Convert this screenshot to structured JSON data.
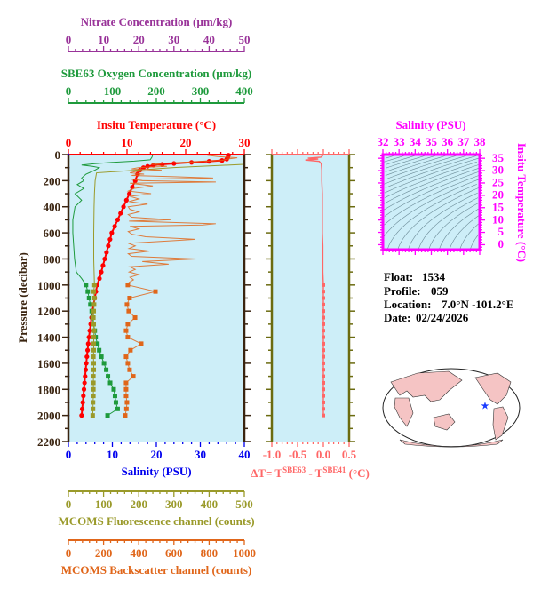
{
  "chart_data": {
    "type": "line",
    "ylabel": "Pressure (decibar)",
    "ylim": [
      2200,
      0
    ],
    "yticks": [
      "0",
      "200",
      "400",
      "600",
      "800",
      "1000",
      "1200",
      "1400",
      "1600",
      "1800",
      "2000",
      "2200"
    ],
    "grid": false,
    "axes": {
      "nitrate": {
        "label": "Nitrate Concentration (µm/kg)",
        "range": [
          0,
          50
        ],
        "ticks": [
          "0",
          "10",
          "20",
          "30",
          "40",
          "50"
        ],
        "color": "#993399",
        "position": "top"
      },
      "oxygen": {
        "label": "SBE63 Oxygen Concentration (µm/kg)",
        "range": [
          0,
          400
        ],
        "ticks": [
          "0",
          "100",
          "200",
          "300",
          "400"
        ],
        "color": "#1e9a3c",
        "position": "top"
      },
      "temperature": {
        "label": "Insitu Temperature (°C)",
        "range": [
          0,
          30
        ],
        "ticks": [
          "0",
          "10",
          "20",
          "30"
        ],
        "color": "#ff0000",
        "position": "top"
      },
      "salinity": {
        "label": "Salinity (PSU)",
        "range": [
          0,
          40
        ],
        "ticks": [
          "0",
          "10",
          "20",
          "30",
          "40"
        ],
        "color": "#0000ee",
        "position": "bottom"
      },
      "fluorescence": {
        "label": "MCOMS Fluorescence channel (counts)",
        "range": [
          0,
          500
        ],
        "ticks": [
          "0",
          "100",
          "200",
          "300",
          "400",
          "500"
        ],
        "color": "#9a9a2a",
        "position": "bottom"
      },
      "backscatter": {
        "label": "MCOMS Backscatter channel (counts)",
        "range": [
          0,
          1000
        ],
        "ticks": [
          "0",
          "200",
          "400",
          "600",
          "800",
          "1000"
        ],
        "color": "#e0661a",
        "position": "bottom"
      }
    },
    "series": [
      {
        "axis": "temperature",
        "points": [
          [
            5,
            27.3
          ],
          [
            20,
            27.2
          ],
          [
            35,
            27.0
          ],
          [
            45,
            26.2
          ],
          [
            52,
            24
          ],
          [
            60,
            21
          ],
          [
            68,
            18
          ],
          [
            75,
            16
          ],
          [
            82,
            14.5
          ],
          [
            90,
            13.5
          ],
          [
            100,
            12.8
          ],
          [
            120,
            12.2
          ],
          [
            150,
            11.8
          ],
          [
            200,
            11.4
          ],
          [
            250,
            10.9
          ],
          [
            300,
            10.4
          ],
          [
            350,
            9.9
          ],
          [
            400,
            9.4
          ],
          [
            450,
            8.9
          ],
          [
            500,
            8.4
          ],
          [
            550,
            7.9
          ],
          [
            600,
            7.4
          ],
          [
            650,
            7.1
          ],
          [
            700,
            6.8
          ],
          [
            750,
            6.5
          ],
          [
            800,
            6.2
          ],
          [
            850,
            5.9
          ],
          [
            900,
            5.6
          ],
          [
            950,
            5.3
          ],
          [
            1000,
            4.9
          ],
          [
            1050,
            4.7
          ],
          [
            1100,
            4.5
          ],
          [
            1150,
            4.3
          ],
          [
            1200,
            4.1
          ],
          [
            1250,
            3.95
          ],
          [
            1300,
            3.8
          ],
          [
            1350,
            3.65
          ],
          [
            1400,
            3.5
          ],
          [
            1450,
            3.38
          ],
          [
            1500,
            3.27
          ],
          [
            1550,
            3.15
          ],
          [
            1600,
            3.05
          ],
          [
            1650,
            2.95
          ],
          [
            1700,
            2.85
          ],
          [
            1750,
            2.75
          ],
          [
            1800,
            2.65
          ],
          [
            1850,
            2.55
          ],
          [
            1900,
            2.45
          ],
          [
            1950,
            2.35
          ],
          [
            2000,
            2.25
          ]
        ]
      },
      {
        "axis": "oxygen",
        "points": [
          [
            0,
            192
          ],
          [
            20,
            190
          ],
          [
            40,
            186
          ],
          [
            50,
            150
          ],
          [
            60,
            100
          ],
          [
            70,
            60
          ],
          [
            80,
            30
          ],
          [
            90,
            55
          ],
          [
            100,
            70
          ],
          [
            120,
            60
          ],
          [
            150,
            40
          ],
          [
            180,
            30
          ],
          [
            200,
            35
          ],
          [
            230,
            20
          ],
          [
            260,
            35
          ],
          [
            300,
            15
          ],
          [
            350,
            30
          ],
          [
            400,
            15
          ],
          [
            500,
            10
          ],
          [
            600,
            10
          ],
          [
            700,
            12
          ],
          [
            800,
            14
          ],
          [
            900,
            18
          ],
          [
            950,
            30
          ],
          [
            1000,
            40
          ],
          [
            1050,
            44
          ],
          [
            1100,
            47
          ],
          [
            1150,
            50
          ],
          [
            1200,
            53
          ],
          [
            1250,
            55
          ],
          [
            1300,
            57
          ],
          [
            1350,
            60
          ],
          [
            1400,
            62
          ],
          [
            1450,
            66
          ],
          [
            1500,
            70
          ],
          [
            1550,
            75
          ],
          [
            1600,
            81
          ],
          [
            1650,
            86
          ],
          [
            1700,
            90
          ],
          [
            1750,
            95
          ],
          [
            1800,
            103
          ],
          [
            1850,
            106
          ],
          [
            1900,
            108
          ],
          [
            1950,
            112
          ],
          [
            2000,
            89
          ]
        ]
      },
      {
        "axis": "fluorescence",
        "points": [
          [
            0,
            520
          ],
          [
            60,
            510
          ],
          [
            75,
            498
          ],
          [
            100,
            300
          ],
          [
            140,
            80
          ],
          [
            200,
            76
          ],
          [
            300,
            74
          ],
          [
            400,
            73
          ],
          [
            600,
            72
          ],
          [
            800,
            72
          ],
          [
            1000,
            74
          ],
          [
            1050,
            72
          ],
          [
            1100,
            74
          ],
          [
            1150,
            73
          ],
          [
            1200,
            72
          ],
          [
            1250,
            71
          ],
          [
            1300,
            72
          ],
          [
            1350,
            73
          ],
          [
            1400,
            72
          ],
          [
            1450,
            72
          ],
          [
            1500,
            72
          ],
          [
            1550,
            71
          ],
          [
            1600,
            72
          ],
          [
            1650,
            72
          ],
          [
            1700,
            71
          ],
          [
            1750,
            71
          ],
          [
            1800,
            71
          ],
          [
            1850,
            71
          ],
          [
            1900,
            70
          ],
          [
            1950,
            70
          ],
          [
            2000,
            69
          ]
        ]
      },
      {
        "axis": "backscatter",
        "points": [
          [
            5,
            790
          ],
          [
            15,
            850
          ],
          [
            25,
            960
          ],
          [
            35,
            900
          ],
          [
            45,
            875
          ],
          [
            55,
            720
          ],
          [
            65,
            560
          ],
          [
            75,
            470
          ],
          [
            90,
            560
          ],
          [
            100,
            400
          ],
          [
            110,
            360
          ],
          [
            120,
            530
          ],
          [
            130,
            380
          ],
          [
            140,
            350
          ],
          [
            150,
            430
          ],
          [
            160,
            360
          ],
          [
            170,
            620
          ],
          [
            180,
            823
          ],
          [
            190,
            360
          ],
          [
            200,
            420
          ],
          [
            210,
            838
          ],
          [
            220,
            350
          ],
          [
            240,
            480
          ],
          [
            260,
            370
          ],
          [
            280,
            340
          ],
          [
            300,
            470
          ],
          [
            320,
            350
          ],
          [
            340,
            400
          ],
          [
            360,
            345
          ],
          [
            380,
            450
          ],
          [
            400,
            340
          ],
          [
            420,
            350
          ],
          [
            440,
            400
          ],
          [
            460,
            340
          ],
          [
            480,
            360
          ],
          [
            500,
            580
          ],
          [
            510,
            345
          ],
          [
            530,
            838
          ],
          [
            540,
            763
          ],
          [
            550,
            350
          ],
          [
            570,
            400
          ],
          [
            590,
            340
          ],
          [
            610,
            360
          ],
          [
            630,
            440
          ],
          [
            650,
            722
          ],
          [
            660,
            600
          ],
          [
            680,
            340
          ],
          [
            700,
            380
          ],
          [
            720,
            345
          ],
          [
            740,
            460
          ],
          [
            760,
            340
          ],
          [
            780,
            360
          ],
          [
            800,
            727
          ],
          [
            820,
            420
          ],
          [
            840,
            570
          ],
          [
            860,
            350
          ],
          [
            880,
            380
          ],
          [
            900,
            345
          ],
          [
            920,
            400
          ],
          [
            940,
            350
          ],
          [
            960,
            370
          ],
          [
            980,
            345
          ],
          [
            1000,
            338
          ],
          [
            1050,
            495
          ],
          [
            1100,
            348
          ],
          [
            1150,
            333
          ],
          [
            1200,
            343
          ],
          [
            1250,
            379
          ],
          [
            1300,
            338
          ],
          [
            1350,
            328
          ],
          [
            1400,
            338
          ],
          [
            1450,
            414
          ],
          [
            1500,
            353
          ],
          [
            1550,
            328
          ],
          [
            1600,
            338
          ],
          [
            1650,
            348
          ],
          [
            1700,
            369
          ],
          [
            1750,
            328
          ],
          [
            1800,
            328
          ],
          [
            1850,
            328
          ],
          [
            1900,
            333
          ],
          [
            1950,
            330
          ],
          [
            2000,
            323
          ]
        ]
      },
      {
        "axis": "salinity",
        "points": [
          [
            0,
            0
          ],
          [
            100,
            0
          ],
          [
            200,
            0
          ],
          [
            300,
            0
          ],
          [
            400,
            0
          ],
          [
            500,
            0
          ],
          [
            600,
            0
          ],
          [
            700,
            0
          ],
          [
            800,
            0
          ],
          [
            900,
            0
          ],
          [
            1000,
            0
          ],
          [
            1100,
            0
          ],
          [
            1200,
            0
          ],
          [
            1300,
            0
          ],
          [
            1400,
            0
          ],
          [
            1500,
            0
          ],
          [
            1600,
            0
          ],
          [
            1700,
            0
          ],
          [
            1800,
            0
          ],
          [
            1900,
            0
          ],
          [
            2000,
            0
          ]
        ]
      }
    ],
    "delta": {
      "label": {
        "prefix": "ΔT= T",
        "sup1": "SBE63",
        "mid": " - T",
        "sup2": "SBE41",
        "suffix": " (°C)"
      },
      "range": [
        -1.0,
        0.5
      ],
      "ticks": [
        "-1.0",
        "-0.5",
        "0.0",
        "0.5"
      ],
      "color": "#ff6666",
      "points": [
        [
          0,
          0
        ],
        [
          10,
          -0.02
        ],
        [
          20,
          -0.05
        ],
        [
          28,
          -0.3
        ],
        [
          34,
          -0.1
        ],
        [
          42,
          -0.35
        ],
        [
          52,
          -0.08
        ],
        [
          70,
          -0.04
        ],
        [
          120,
          -0.03
        ],
        [
          200,
          -0.03
        ],
        [
          300,
          -0.02
        ],
        [
          400,
          -0.02
        ],
        [
          500,
          -0.02
        ],
        [
          600,
          -0.02
        ],
        [
          700,
          -0.01
        ],
        [
          800,
          -0.01
        ],
        [
          900,
          -0.01
        ],
        [
          1000,
          0
        ],
        [
          1050,
          0
        ],
        [
          1100,
          0
        ],
        [
          1150,
          0
        ],
        [
          1200,
          0
        ],
        [
          1250,
          0
        ],
        [
          1300,
          0
        ],
        [
          1350,
          0
        ],
        [
          1400,
          0
        ],
        [
          1450,
          0
        ],
        [
          1500,
          0
        ],
        [
          1550,
          0
        ],
        [
          1600,
          0
        ],
        [
          1650,
          0
        ],
        [
          1700,
          0
        ],
        [
          1750,
          0
        ],
        [
          1800,
          0
        ],
        [
          1850,
          0
        ],
        [
          1900,
          0
        ],
        [
          1950,
          0
        ],
        [
          2000,
          0
        ]
      ]
    },
    "ts_diagram": {
      "xlabel": "Salinity (PSU)",
      "ylabel": "Insitu Temperature (°C)",
      "xticks": [
        "32",
        "33",
        "34",
        "35",
        "36",
        "37",
        "38"
      ],
      "yticks": [
        "0",
        "5",
        "10",
        "15",
        "20",
        "25",
        "30",
        "35"
      ],
      "color": "#ff00ff"
    }
  },
  "info": [
    {
      "label": "Float:",
      "value": "1534"
    },
    {
      "label": "Profile:",
      "value": "059"
    },
    {
      "label": "Location:",
      "value": "7.0°N  -101.2°E"
    },
    {
      "label": "Date:",
      "value": "02/24/2026"
    }
  ],
  "map": {
    "marker": "star-icon",
    "marker_color": "#1a3cff",
    "land_color": "#f5c4c4"
  }
}
